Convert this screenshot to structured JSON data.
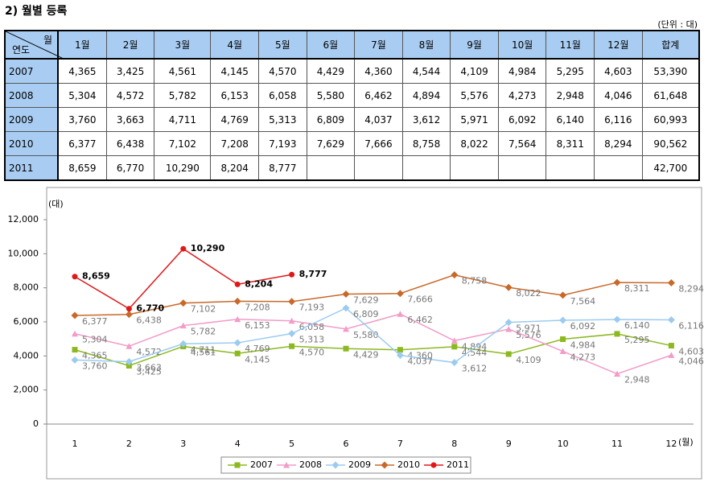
{
  "title": "2) 월별 등록",
  "unit": "(단위 : 대)",
  "table": {
    "corner_top": "월",
    "corner_bottom": "연도",
    "header": [
      "1월",
      "2월",
      "3월",
      "4월",
      "5월",
      "6월",
      "7월",
      "8월",
      "9월",
      "10월",
      "11월",
      "12월",
      "합계"
    ],
    "rows": [
      [
        "2007",
        "4,365",
        "3,425",
        "4,561",
        "4,145",
        "4,570",
        "4,429",
        "4,360",
        "4,544",
        "4,109",
        "4,984",
        "5,295",
        "4,603",
        "53,390"
      ],
      [
        "2008",
        "5,304",
        "4,572",
        "5,782",
        "6,153",
        "6,058",
        "5,580",
        "6,462",
        "4,894",
        "5,576",
        "4,273",
        "2,948",
        "4,046",
        "61,648"
      ],
      [
        "2009",
        "3,760",
        "3,663",
        "4,711",
        "4,769",
        "5,313",
        "6,809",
        "4,037",
        "3,612",
        "5,971",
        "6,092",
        "6,140",
        "6,116",
        "60,993"
      ],
      [
        "2010",
        "6,377",
        "6,438",
        "7,102",
        "7,208",
        "7,193",
        "7,629",
        "7,666",
        "8,758",
        "8,022",
        "7,564",
        "8,311",
        "8,294",
        "90,562"
      ],
      [
        "2011",
        "8,659",
        "6,770",
        "10,290",
        "8,204",
        "8,777",
        null,
        null,
        null,
        null,
        null,
        null,
        null,
        "42,700"
      ]
    ]
  },
  "chart_data": {
    "type": "line",
    "y_label": "(대)",
    "x_label": "(월)",
    "categories": [
      "1",
      "2",
      "3",
      "4",
      "5",
      "6",
      "7",
      "8",
      "9",
      "10",
      "11",
      "12"
    ],
    "ylim": [
      0,
      12000
    ],
    "yticks": [
      0,
      {
        "value": 2000,
        "label": "2,000"
      },
      {
        "value": 4000,
        "label": "4,000"
      },
      {
        "value": 6000,
        "label": "6,000"
      },
      {
        "value": 8000,
        "label": "8,000"
      },
      {
        "value": 10000,
        "label": "10,000"
      },
      {
        "value": 12000,
        "label": "12,000"
      }
    ],
    "legend": "bottom",
    "series": [
      {
        "name": "2007",
        "color": "#8cb820",
        "marker": "square",
        "values": [
          4365,
          3425,
          4561,
          4145,
          4570,
          4429,
          4360,
          4544,
          4109,
          4984,
          5295,
          4603
        ],
        "value_labels": [
          "4,365",
          "3,425",
          "4,561",
          "4,145",
          "4,570",
          "4,429",
          "4,360",
          "4,544",
          "4,109",
          "4,984",
          "5,295",
          "4,603"
        ]
      },
      {
        "name": "2008",
        "color": "#f29cc8",
        "marker": "triangle",
        "values": [
          5304,
          4572,
          5782,
          6153,
          6058,
          5580,
          6462,
          4894,
          5576,
          4273,
          2948,
          4046
        ],
        "value_labels": [
          "5,304",
          "4,572",
          "5,782",
          "6,153",
          "6,058",
          "5,580",
          "6,462",
          "4,894",
          "5,576",
          "4,273",
          "2,948",
          "4,046"
        ]
      },
      {
        "name": "2009",
        "color": "#9ccbf0",
        "marker": "diamond",
        "values": [
          3760,
          3663,
          4711,
          4769,
          5313,
          6809,
          4037,
          3612,
          5971,
          6092,
          6140,
          6116
        ],
        "value_labels": [
          "3,760",
          "3,663",
          "4,711",
          "4,769",
          "5,313",
          "6,809",
          "4,037",
          "3,612",
          "5,971",
          "6,092",
          "6,140",
          "6,116"
        ]
      },
      {
        "name": "2010",
        "color": "#c8692a",
        "marker": "diamond",
        "values": [
          6377,
          6438,
          7102,
          7208,
          7193,
          7629,
          7666,
          8758,
          8022,
          7564,
          8311,
          8294
        ],
        "value_labels": [
          "6,377",
          "6,438",
          "7,102",
          "7,208",
          "7,193",
          "7,629",
          "7,666",
          "8,758",
          "8,022",
          "7,564",
          "8,311",
          "8,294"
        ]
      },
      {
        "name": "2011",
        "color": "#e01818",
        "marker": "circle",
        "values": [
          8659,
          6770,
          10290,
          8204,
          8777,
          null,
          null,
          null,
          null,
          null,
          null,
          null
        ],
        "value_labels": [
          "8,659",
          "6,770",
          "10,290",
          "8,204",
          "8,777",
          null,
          null,
          null,
          null,
          null,
          null,
          null
        ]
      }
    ]
  }
}
